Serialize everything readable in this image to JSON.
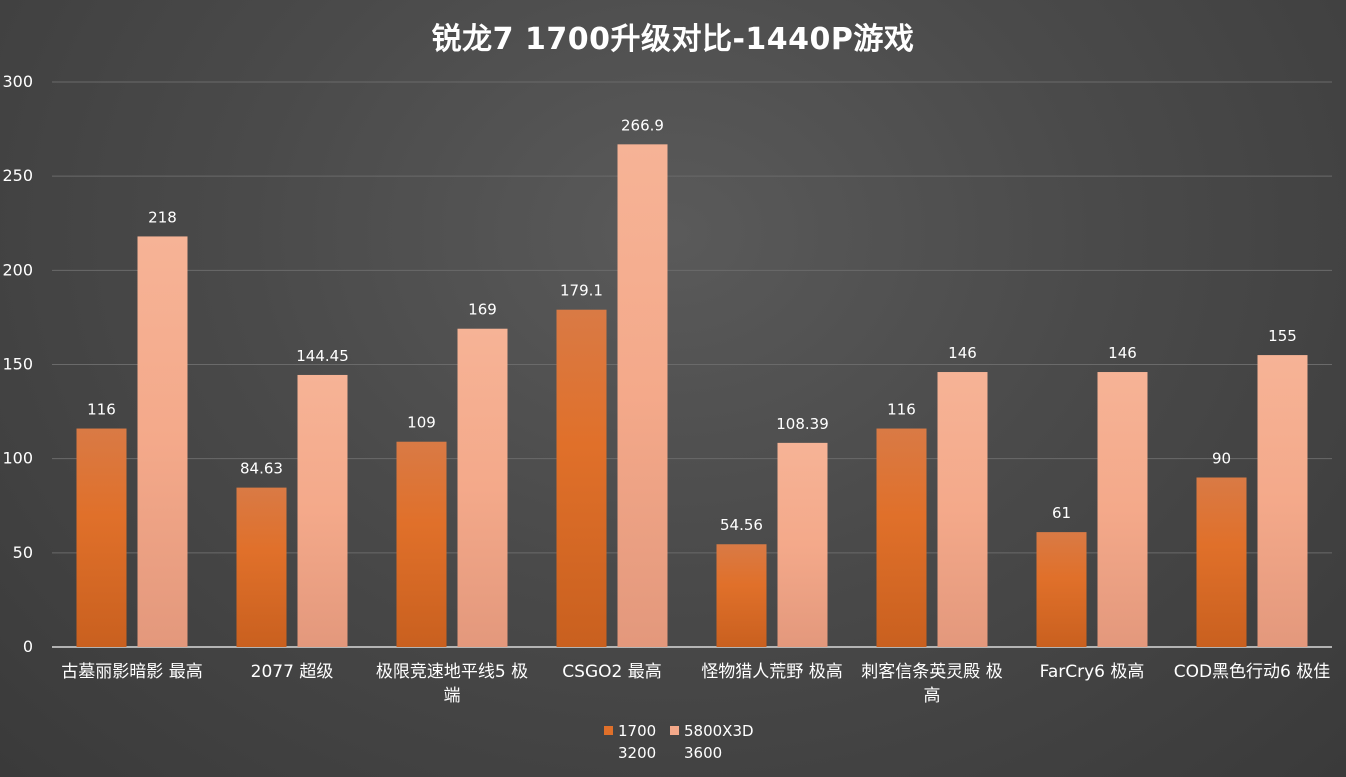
{
  "chart_data": {
    "type": "bar",
    "title": "锐龙7 1700升级对比-1440P游戏",
    "categories": [
      [
        "古墓丽影暗影 最高"
      ],
      [
        "2077 超级"
      ],
      [
        "极限竞速地平线5 极",
        "端"
      ],
      [
        "CSGO2 最高"
      ],
      [
        "怪物猎人荒野 极高"
      ],
      [
        "刺客信条英灵殿 极",
        "高"
      ],
      [
        "FarCry6 极高"
      ],
      [
        "COD黑色行动6 极佳"
      ]
    ],
    "series": [
      {
        "name": "1700 3200",
        "name_lines": [
          "1700",
          "3200"
        ],
        "color": "#e0702a",
        "values": [
          116,
          84.63,
          109,
          179.1,
          54.56,
          116,
          61,
          90
        ],
        "labels": [
          "116",
          "84.63",
          "109",
          "179.1",
          "54.56",
          "116",
          "61",
          "90"
        ]
      },
      {
        "name": "5800X3D 3600",
        "name_lines": [
          "5800X3D",
          "3600"
        ],
        "color": "#f4a98a",
        "values": [
          218,
          144.45,
          169,
          266.9,
          108.39,
          146,
          146,
          155
        ],
        "labels": [
          "218",
          "144.45",
          "169",
          "266.9",
          "108.39",
          "146",
          "146",
          "155"
        ]
      }
    ],
    "ylim": [
      0,
      300
    ],
    "yticks": [
      0,
      50,
      100,
      150,
      200,
      250,
      300
    ],
    "grid": true,
    "legend": "bottom"
  }
}
